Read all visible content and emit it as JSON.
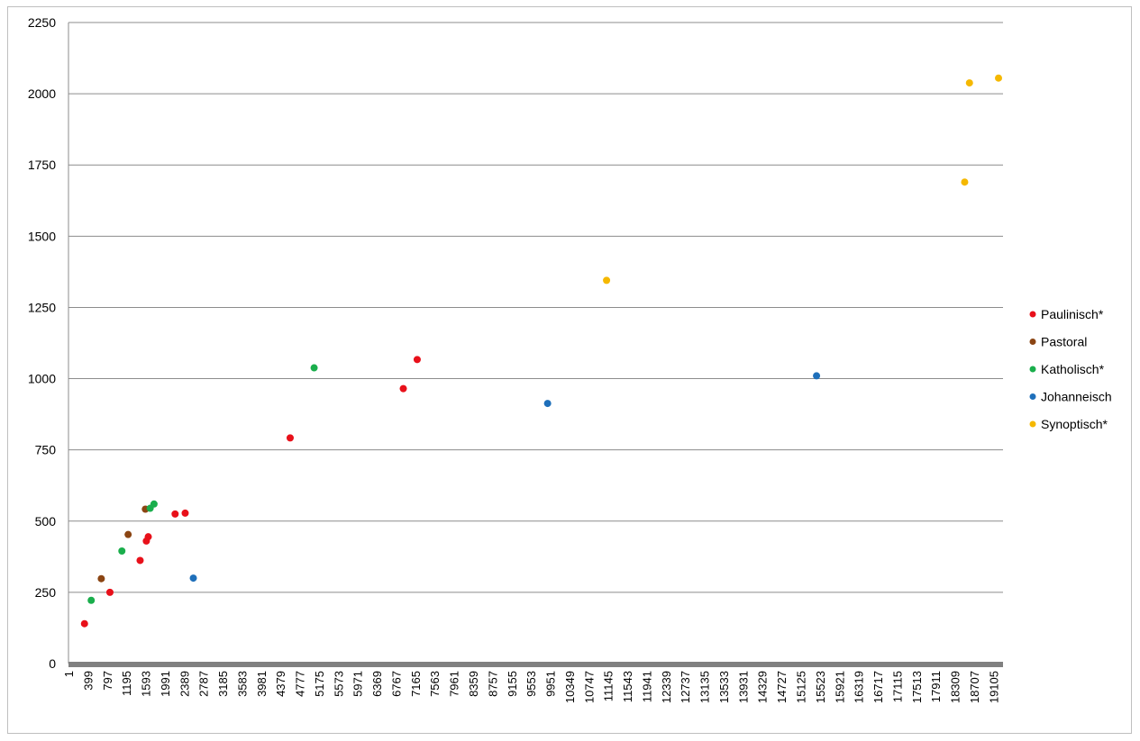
{
  "chart_data": {
    "type": "scatter",
    "title": "",
    "xlabel": "",
    "ylabel": "",
    "ylim": [
      0,
      2250
    ],
    "yticks": [
      0,
      250,
      500,
      750,
      1000,
      1250,
      1500,
      1750,
      2000,
      2250
    ],
    "xlim": [
      1,
      19495
    ],
    "xticks": [
      "1",
      "399",
      "797",
      "1195",
      "1593",
      "1991",
      "2389",
      "2787",
      "3185",
      "3583",
      "3981",
      "4379",
      "4777",
      "5175",
      "5573",
      "5971",
      "6369",
      "6767",
      "7165",
      "7563",
      "7961",
      "8359",
      "8757",
      "9155",
      "9553",
      "9951",
      "10349",
      "10747",
      "11145",
      "11543",
      "11941",
      "12339",
      "12737",
      "13135",
      "13533",
      "13931",
      "14329",
      "14727",
      "15125",
      "15523",
      "15921",
      "16319",
      "16717",
      "17115",
      "17513",
      "17911",
      "18309",
      "18707",
      "19105"
    ],
    "grid": "horizontal",
    "legend_position": "right",
    "series": [
      {
        "name": "Paulinisch*",
        "color": "#e8101a",
        "points": [
          {
            "x": 335,
            "y": 140
          },
          {
            "x": 865,
            "y": 250
          },
          {
            "x": 1495,
            "y": 362
          },
          {
            "x": 1625,
            "y": 430
          },
          {
            "x": 1665,
            "y": 445
          },
          {
            "x": 2225,
            "y": 525
          },
          {
            "x": 2435,
            "y": 528
          },
          {
            "x": 4625,
            "y": 792
          },
          {
            "x": 6985,
            "y": 965
          },
          {
            "x": 7275,
            "y": 1067
          }
        ]
      },
      {
        "name": "Pastoral",
        "color": "#8b4513",
        "points": [
          {
            "x": 685,
            "y": 298
          },
          {
            "x": 1245,
            "y": 453
          },
          {
            "x": 1605,
            "y": 542
          }
        ]
      },
      {
        "name": "Katholisch*",
        "color": "#1aae4c",
        "points": [
          {
            "x": 475,
            "y": 222
          },
          {
            "x": 1115,
            "y": 395
          },
          {
            "x": 1705,
            "y": 545
          },
          {
            "x": 1785,
            "y": 560
          },
          {
            "x": 5125,
            "y": 1038
          }
        ]
      },
      {
        "name": "Johanneisch",
        "color": "#1e6fba",
        "points": [
          {
            "x": 2605,
            "y": 300
          },
          {
            "x": 9995,
            "y": 913
          },
          {
            "x": 15605,
            "y": 1010
          }
        ]
      },
      {
        "name": "Synoptisch*",
        "color": "#f5b800",
        "points": [
          {
            "x": 11225,
            "y": 1345
          },
          {
            "x": 18695,
            "y": 1690
          },
          {
            "x": 18795,
            "y": 2038
          },
          {
            "x": 19825,
            "y": 2055
          }
        ]
      }
    ]
  }
}
